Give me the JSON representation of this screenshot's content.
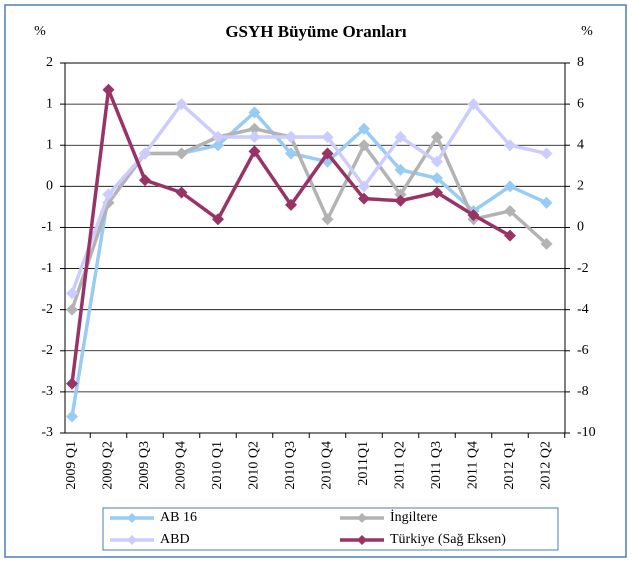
{
  "chart_data": {
    "type": "line",
    "title": "GSYH Büyüme Oranları",
    "y_label": "%",
    "y2_label": "%",
    "categories": [
      "2009 Q1",
      "2009 Q2",
      "2009 Q3",
      "2009 Q4",
      "2010 Q1",
      "2010 Q2",
      "2010 Q3",
      "2010 Q4",
      "2011Q1",
      "2011 Q2",
      "2011 Q3",
      "2011 Q4",
      "2012 Q1",
      "2012 Q2"
    ],
    "series": [
      {
        "name": "AB 16",
        "color": "#99ccf5",
        "values": [
          -2.8,
          -0.1,
          0.4,
          0.4,
          0.5,
          0.9,
          0.4,
          0.3,
          0.7,
          0.2,
          0.1,
          -0.3,
          0,
          -0.2
        ]
      },
      {
        "name": "İngiltere",
        "color": "#b3b3b3",
        "values": [
          -1.5,
          -0.2,
          0.4,
          0.4,
          0.6,
          0.7,
          0.6,
          -0.4,
          0.5,
          -0.1,
          0.6,
          -0.4,
          -0.3,
          -0.7
        ]
      },
      {
        "name": "ABD",
        "color": "#ccccff",
        "values": [
          -1.3,
          -0.1,
          0.4,
          1.0,
          0.6,
          0.6,
          0.6,
          0.6,
          0,
          0.6,
          0.3,
          1.0,
          0.5,
          0.4
        ]
      },
      {
        "name": "Türkiye (Sağ Eksen)",
        "color": "#993366",
        "axis": "y2",
        "values": [
          -7.6,
          6.7,
          2.3,
          1.7,
          0.4,
          3.7,
          1.1,
          3.6,
          1.4,
          1.3,
          1.7,
          0.6,
          -0.4,
          null
        ]
      }
    ],
    "ylim": [
      -3,
      1.5
    ],
    "yticks": [
      {
        "value": 1.5,
        "label": "2"
      },
      1,
      {
        "value": 0.5,
        "label": "1"
      },
      0,
      {
        "value": -0.5,
        "label": "-1"
      },
      -1,
      {
        "value": -1.5,
        "label": "-2"
      },
      -2,
      {
        "value": -2.5,
        "label": "-3"
      },
      -3
    ],
    "y2lim": [
      -10,
      8
    ],
    "y2ticks": [
      8,
      6,
      4,
      2,
      0,
      -2,
      -4,
      -6,
      -8,
      -10
    ],
    "grid": true
  }
}
